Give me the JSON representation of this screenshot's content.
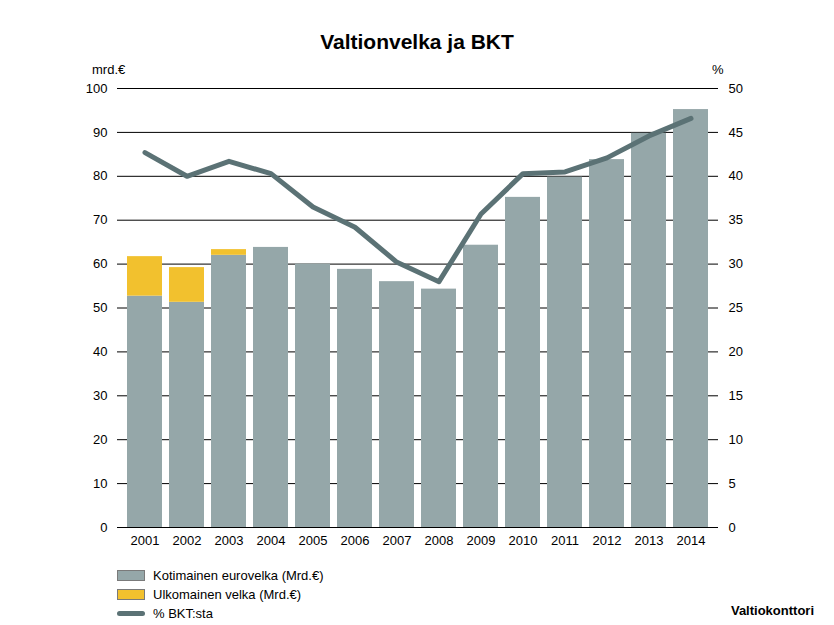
{
  "chart_data": {
    "type": "bar",
    "title": "Valtionvelka ja BKT",
    "y_label": "mrd.€",
    "y2_label": "%",
    "annotations": [
      "Valtiokonttori"
    ],
    "categories": [
      "2001",
      "2002",
      "2003",
      "2004",
      "2005",
      "2006",
      "2007",
      "2008",
      "2009",
      "2010",
      "2011",
      "2012",
      "2013",
      "2014"
    ],
    "series": [
      {
        "name": "Kotimainen eurovelka (Mrd.€)",
        "type": "bar",
        "color": "#95a7a9",
        "values": [
          52.7,
          51.3,
          62.0,
          63.8,
          60.0,
          58.8,
          56.0,
          54.3,
          64.3,
          75.2,
          79.8,
          83.8,
          89.8,
          95.2
        ]
      },
      {
        "name": "Ulkomainen velka (Mrd.€)",
        "type": "bar",
        "color": "#f2c12e",
        "values": [
          9.0,
          7.9,
          1.3,
          0,
          0,
          0,
          0,
          0,
          0,
          0,
          0,
          0,
          0,
          0
        ]
      },
      {
        "name": "% BKT:sta",
        "type": "line",
        "axis": "y2",
        "color": "#5b7275",
        "values": [
          42.7,
          40.0,
          41.7,
          40.3,
          36.5,
          34.2,
          30.2,
          28.0,
          35.7,
          40.3,
          40.5,
          42.1,
          44.6,
          46.6
        ]
      }
    ],
    "stacked": true,
    "grid": true,
    "legend": "bottom-left",
    "ylim": [
      0,
      100
    ],
    "yticks": [
      0,
      10,
      20,
      30,
      40,
      50,
      60,
      70,
      80,
      90,
      100
    ],
    "y2lim": [
      0,
      50
    ],
    "y2ticks": [
      0,
      5,
      10,
      15,
      20,
      25,
      30,
      35,
      40,
      45,
      50
    ]
  }
}
